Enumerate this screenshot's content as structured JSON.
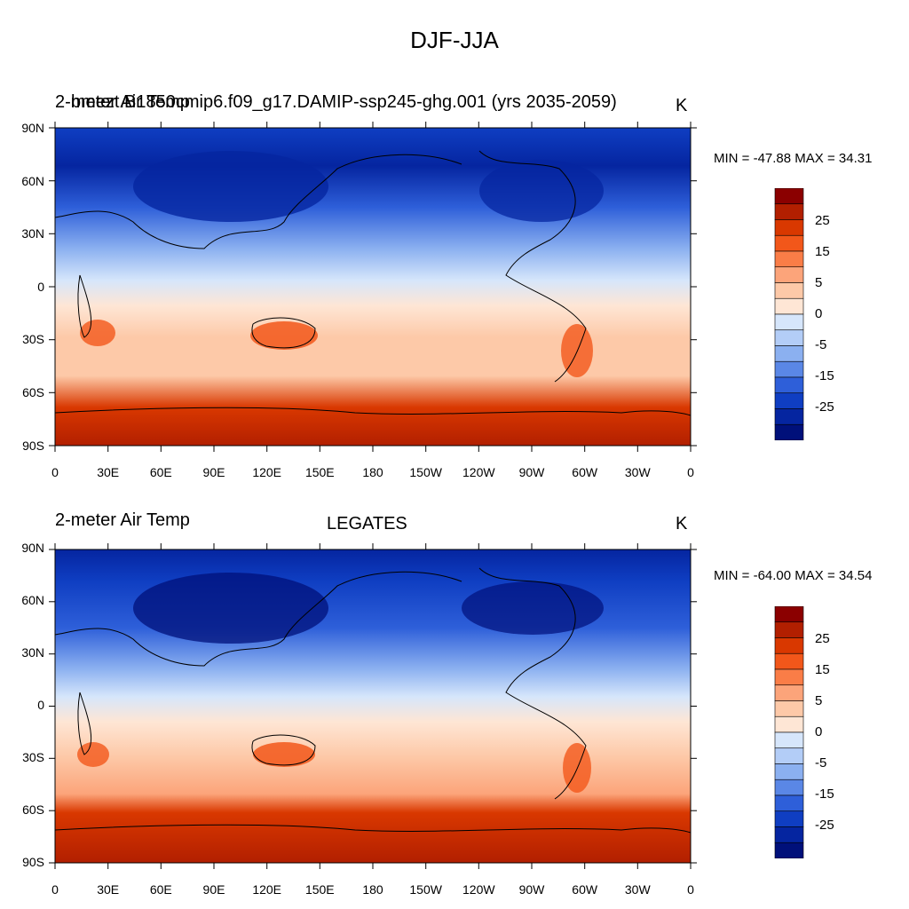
{
  "title": "DJF-JJA",
  "panels": [
    {
      "left_title": "2-meter Air Temp",
      "center_title": "bmezt.B1850cmip6.f09_g17.DAMIP-ssp245-ghg.001 (yrs 2035-2059)",
      "units": "K",
      "min_max": "MIN = -47.88 MAX =  34.31"
    },
    {
      "left_title": "2-meter Air Temp",
      "center_title": "LEGATES",
      "units": "K",
      "min_max": "MIN = -64.00 MAX =  34.54"
    }
  ],
  "lat_labels": [
    "90N",
    "60N",
    "30N",
    "0",
    "30S",
    "60S",
    "90S"
  ],
  "lon_labels": [
    "0",
    "30E",
    "60E",
    "90E",
    "120E",
    "150E",
    "180",
    "150W",
    "120W",
    "90W",
    "60W",
    "30W",
    "0"
  ],
  "colorbar": {
    "colors": [
      "#8b0000",
      "#b21f00",
      "#d93800",
      "#f2571a",
      "#fa7d47",
      "#fca47a",
      "#fdc9a8",
      "#fee6d5",
      "#d6e6fb",
      "#b3cdf7",
      "#8bb0f0",
      "#5a87e6",
      "#2e5fd9",
      "#0f3ec2",
      "#0525a0",
      "#00107a"
    ],
    "labels": [
      "25",
      "15",
      "5",
      "0",
      "-5",
      "-15",
      "-25"
    ]
  }
}
